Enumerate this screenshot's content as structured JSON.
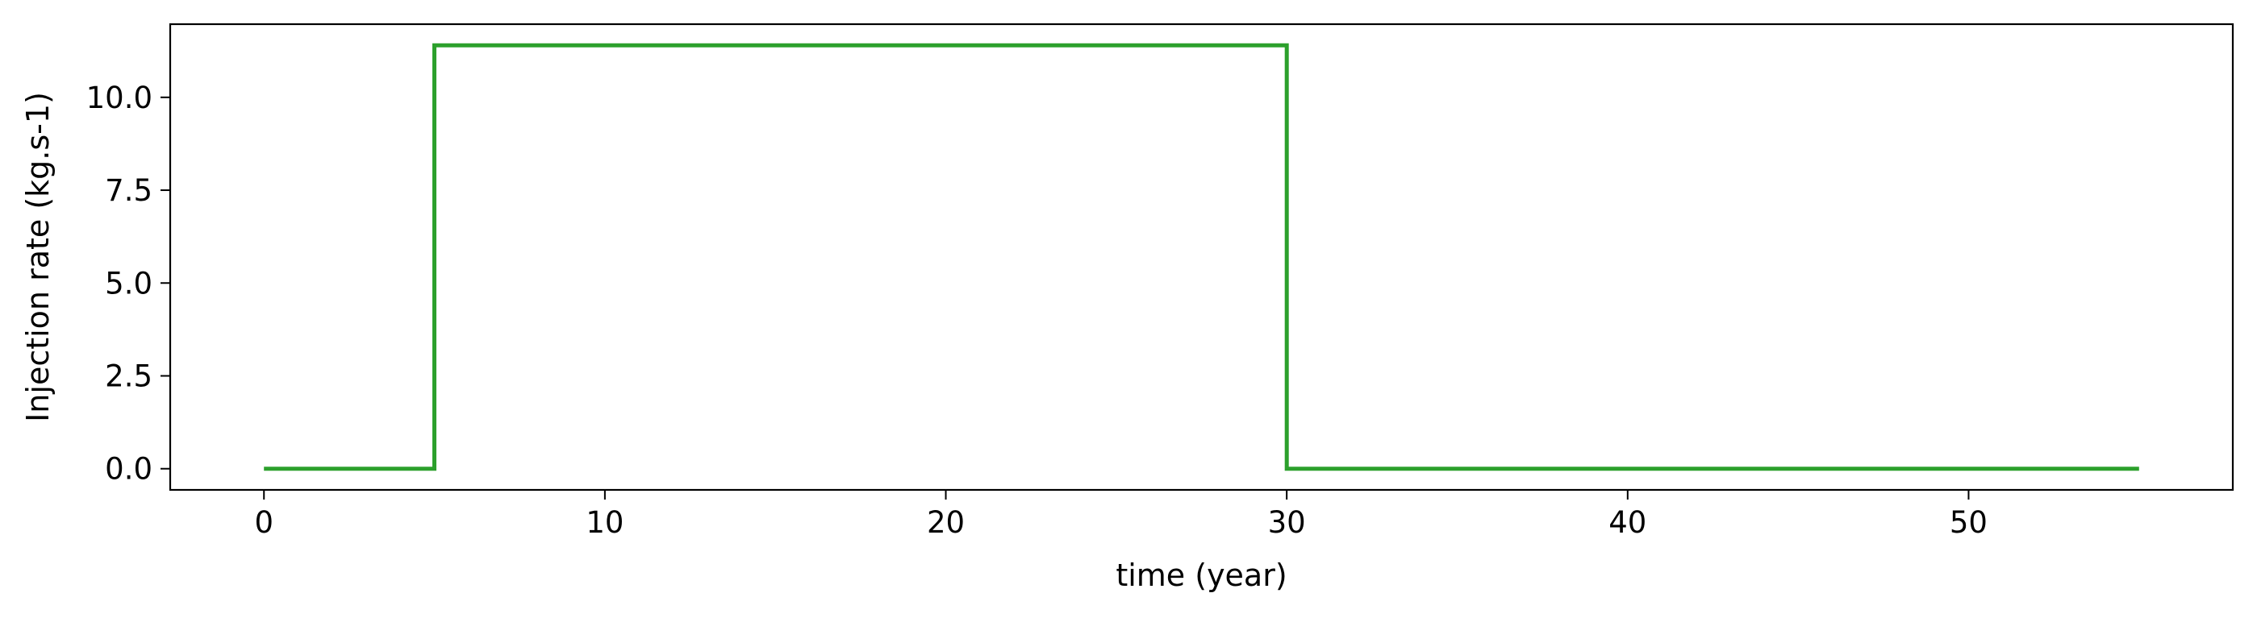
{
  "chart_data": {
    "type": "line",
    "title": "",
    "xlabel": "time (year)",
    "ylabel": "Injection rate (kg.s-1)",
    "xlim": [
      -2.75,
      57.75
    ],
    "ylim": [
      -0.57,
      11.97
    ],
    "xticks": [
      0,
      10,
      20,
      30,
      40,
      50
    ],
    "xtick_labels": [
      "0",
      "10",
      "20",
      "30",
      "40",
      "50"
    ],
    "yticks": [
      0.0,
      2.5,
      5.0,
      7.5,
      10.0
    ],
    "ytick_labels": [
      "0.0",
      "2.5",
      "5.0",
      "7.5",
      "10.0"
    ],
    "grid": false,
    "series": [
      {
        "color": "#2ca02c",
        "step": true,
        "x": [
          0,
          5,
          5,
          30,
          30,
          55
        ],
        "y": [
          0,
          0,
          11.4,
          11.4,
          0,
          0
        ]
      }
    ]
  }
}
